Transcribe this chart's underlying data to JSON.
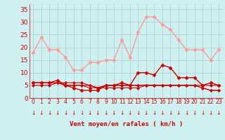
{
  "hours": [
    0,
    1,
    2,
    3,
    4,
    5,
    6,
    7,
    8,
    9,
    10,
    11,
    12,
    13,
    14,
    15,
    16,
    17,
    18,
    19,
    20,
    21,
    22,
    23
  ],
  "rafales": [
    18,
    24,
    19,
    19,
    16,
    11,
    11,
    14,
    14,
    15,
    15,
    23,
    16,
    26,
    32,
    32,
    29,
    27,
    23,
    19,
    19,
    19,
    15,
    19
  ],
  "vent_moyen": [
    6,
    6,
    6,
    7,
    5,
    4,
    3,
    3,
    3,
    5,
    5,
    6,
    5,
    10,
    10,
    9,
    13,
    12,
    8,
    8,
    8,
    5,
    6,
    5
  ],
  "line3": [
    6,
    6,
    6,
    6,
    5,
    5,
    5,
    4,
    4,
    5,
    5,
    5,
    5,
    5,
    5,
    5,
    5,
    5,
    5,
    5,
    5,
    5,
    5,
    5
  ],
  "line4": [
    6,
    6,
    6,
    6,
    6,
    6,
    6,
    5,
    4,
    5,
    5,
    5,
    5,
    5,
    5,
    5,
    5,
    5,
    5,
    5,
    5,
    4,
    3,
    3
  ],
  "line5": [
    5,
    5,
    5,
    6,
    5,
    5,
    5,
    5,
    4,
    4,
    4,
    4,
    4,
    4,
    5,
    5,
    5,
    5,
    5,
    5,
    5,
    4,
    3,
    3
  ],
  "bg_color": "#cff0f0",
  "grid_color": "#aacccc",
  "rafales_color": "#ff9999",
  "vent_color": "#cc0000",
  "line3_color": "#cc0000",
  "line4_color": "#cc0000",
  "line5_color": "#cc0000",
  "xlabel": "Vent moyen/en rafales ( km/h )",
  "xlabel_color": "#cc0000",
  "tick_color": "#cc0000",
  "arrow_color": "#cc0000",
  "ylim": [
    0,
    37
  ],
  "yticks": [
    0,
    5,
    10,
    15,
    20,
    25,
    30,
    35
  ]
}
